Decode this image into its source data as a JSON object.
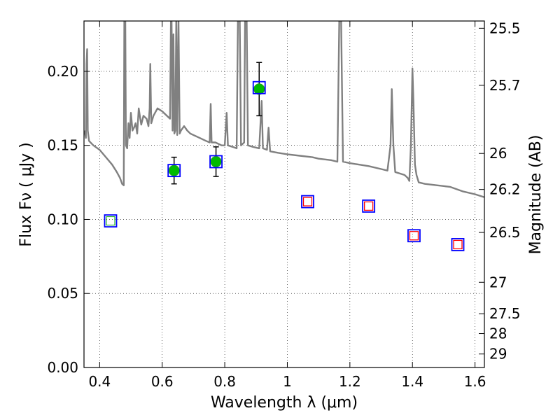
{
  "chart_data": {
    "type": "scatter",
    "xlabel": "Wavelength  λ (μm)",
    "ylabel": "Flux  Fν  ( μJy )",
    "ylabel_right": "Magnitude (AB)",
    "xlim": [
      0.35,
      1.63
    ],
    "ylim": [
      0.0,
      0.234
    ],
    "grid": true,
    "x_ticks": [
      {
        "value": 0.4,
        "label": "0.4"
      },
      {
        "value": 0.6,
        "label": "0.6"
      },
      {
        "value": 0.8,
        "label": "0.8"
      },
      {
        "value": 1.0,
        "label": "1"
      },
      {
        "value": 1.2,
        "label": "1.2"
      },
      {
        "value": 1.4,
        "label": "1.4"
      },
      {
        "value": 1.6,
        "label": "1.6"
      }
    ],
    "y_ticks": [
      {
        "value": 0.0,
        "label": "0.00"
      },
      {
        "value": 0.05,
        "label": "0.05"
      },
      {
        "value": 0.1,
        "label": "0.10"
      },
      {
        "value": 0.15,
        "label": "0.15"
      },
      {
        "value": 0.2,
        "label": "0.20"
      }
    ],
    "right_ticks": [
      {
        "mag": 25.5,
        "label": "25.5"
      },
      {
        "mag": 25.7,
        "label": "25.7"
      },
      {
        "mag": 26.0,
        "label": "26"
      },
      {
        "mag": 26.2,
        "label": "26.2"
      },
      {
        "mag": 26.5,
        "label": "26.5"
      },
      {
        "mag": 27.0,
        "label": "27"
      },
      {
        "mag": 27.5,
        "label": "27.5"
      },
      {
        "mag": 28.0,
        "label": "28"
      },
      {
        "mag": 29.0,
        "label": "29"
      }
    ],
    "model_spectrum": {
      "color": "#808080",
      "points": [
        [
          0.352,
          0.16
        ],
        [
          0.356,
          0.155
        ],
        [
          0.358,
          0.205
        ],
        [
          0.36,
          0.215
        ],
        [
          0.362,
          0.16
        ],
        [
          0.366,
          0.153
        ],
        [
          0.38,
          0.15
        ],
        [
          0.4,
          0.147
        ],
        [
          0.42,
          0.142
        ],
        [
          0.44,
          0.137
        ],
        [
          0.455,
          0.132
        ],
        [
          0.465,
          0.128
        ],
        [
          0.472,
          0.124
        ],
        [
          0.477,
          0.123
        ],
        [
          0.479,
          0.235
        ],
        [
          0.482,
          0.235
        ],
        [
          0.484,
          0.15
        ],
        [
          0.488,
          0.148
        ],
        [
          0.492,
          0.165
        ],
        [
          0.496,
          0.155
        ],
        [
          0.5,
          0.172
        ],
        [
          0.505,
          0.16
        ],
        [
          0.51,
          0.162
        ],
        [
          0.515,
          0.165
        ],
        [
          0.52,
          0.158
        ],
        [
          0.525,
          0.175
        ],
        [
          0.53,
          0.168
        ],
        [
          0.533,
          0.164
        ],
        [
          0.54,
          0.17
        ],
        [
          0.55,
          0.168
        ],
        [
          0.556,
          0.163
        ],
        [
          0.56,
          0.175
        ],
        [
          0.562,
          0.205
        ],
        [
          0.565,
          0.165
        ],
        [
          0.572,
          0.17
        ],
        [
          0.585,
          0.175
        ],
        [
          0.6,
          0.173
        ],
        [
          0.615,
          0.17
        ],
        [
          0.625,
          0.168
        ],
        [
          0.628,
          0.235
        ],
        [
          0.63,
          0.235
        ],
        [
          0.633,
          0.16
        ],
        [
          0.636,
          0.225
        ],
        [
          0.639,
          0.158
        ],
        [
          0.642,
          0.16
        ],
        [
          0.645,
          0.235
        ],
        [
          0.648,
          0.157
        ],
        [
          0.652,
          0.235
        ],
        [
          0.656,
          0.158
        ],
        [
          0.66,
          0.16
        ],
        [
          0.67,
          0.163
        ],
        [
          0.68,
          0.16
        ],
        [
          0.69,
          0.158
        ],
        [
          0.7,
          0.157
        ],
        [
          0.72,
          0.155
        ],
        [
          0.74,
          0.153
        ],
        [
          0.752,
          0.152
        ],
        [
          0.755,
          0.178
        ],
        [
          0.758,
          0.152
        ],
        [
          0.77,
          0.152
        ],
        [
          0.79,
          0.15
        ],
        [
          0.8,
          0.15
        ],
        [
          0.806,
          0.172
        ],
        [
          0.81,
          0.15
        ],
        [
          0.825,
          0.149
        ],
        [
          0.838,
          0.148
        ],
        [
          0.842,
          0.235
        ],
        [
          0.848,
          0.235
        ],
        [
          0.852,
          0.15
        ],
        [
          0.862,
          0.152
        ],
        [
          0.865,
          0.235
        ],
        [
          0.87,
          0.235
        ],
        [
          0.874,
          0.15
        ],
        [
          0.89,
          0.149
        ],
        [
          0.91,
          0.148
        ],
        [
          0.918,
          0.18
        ],
        [
          0.922,
          0.148
        ],
        [
          0.935,
          0.147
        ],
        [
          0.94,
          0.162
        ],
        [
          0.945,
          0.146
        ],
        [
          0.97,
          0.145
        ],
        [
          1.0,
          0.144
        ],
        [
          1.04,
          0.143
        ],
        [
          1.08,
          0.142
        ],
        [
          1.1,
          0.141
        ],
        [
          1.14,
          0.14
        ],
        [
          1.16,
          0.139
        ],
        [
          1.166,
          0.235
        ],
        [
          1.172,
          0.235
        ],
        [
          1.178,
          0.139
        ],
        [
          1.2,
          0.138
        ],
        [
          1.23,
          0.137
        ],
        [
          1.26,
          0.136
        ],
        [
          1.3,
          0.134
        ],
        [
          1.32,
          0.133
        ],
        [
          1.33,
          0.15
        ],
        [
          1.334,
          0.188
        ],
        [
          1.339,
          0.15
        ],
        [
          1.345,
          0.132
        ],
        [
          1.36,
          0.131
        ],
        [
          1.375,
          0.13
        ],
        [
          1.385,
          0.128
        ],
        [
          1.39,
          0.126
        ],
        [
          1.395,
          0.15
        ],
        [
          1.398,
          0.18
        ],
        [
          1.4,
          0.202
        ],
        [
          1.403,
          0.18
        ],
        [
          1.408,
          0.137
        ],
        [
          1.413,
          0.13
        ],
        [
          1.42,
          0.125
        ],
        [
          1.44,
          0.124
        ],
        [
          1.48,
          0.123
        ],
        [
          1.52,
          0.122
        ],
        [
          1.56,
          0.119
        ],
        [
          1.6,
          0.117
        ],
        [
          1.63,
          0.115
        ]
      ]
    },
    "series": [
      {
        "marker": "filled-circle",
        "color": "#00bb00",
        "edge": "#1f9e1f",
        "points": [
          {
            "x": 0.638,
            "y": 0.133,
            "yerr": 0.009
          },
          {
            "x": 0.772,
            "y": 0.139,
            "yerr": 0.01
          },
          {
            "x": 0.91,
            "y": 0.188,
            "yerr": 0.018
          }
        ]
      },
      {
        "marker": "open-square-blue",
        "color": "#0000ff",
        "points": [
          {
            "x": 0.435,
            "y": 0.099
          },
          {
            "x": 0.638,
            "y": 0.133
          },
          {
            "x": 0.772,
            "y": 0.139
          },
          {
            "x": 0.91,
            "y": 0.189
          },
          {
            "x": 1.065,
            "y": 0.112
          },
          {
            "x": 1.26,
            "y": 0.109
          },
          {
            "x": 1.405,
            "y": 0.089
          },
          {
            "x": 1.545,
            "y": 0.083
          }
        ]
      },
      {
        "marker": "open-square-red",
        "color": "#ff0000",
        "points": [
          {
            "x": 1.065,
            "y": 0.112
          },
          {
            "x": 1.26,
            "y": 0.109
          },
          {
            "x": 1.405,
            "y": 0.089
          },
          {
            "x": 1.545,
            "y": 0.083
          }
        ]
      },
      {
        "marker": "open-square-green",
        "color": "#00aa00",
        "points": [
          {
            "x": 0.435,
            "y": 0.099
          }
        ]
      }
    ]
  }
}
